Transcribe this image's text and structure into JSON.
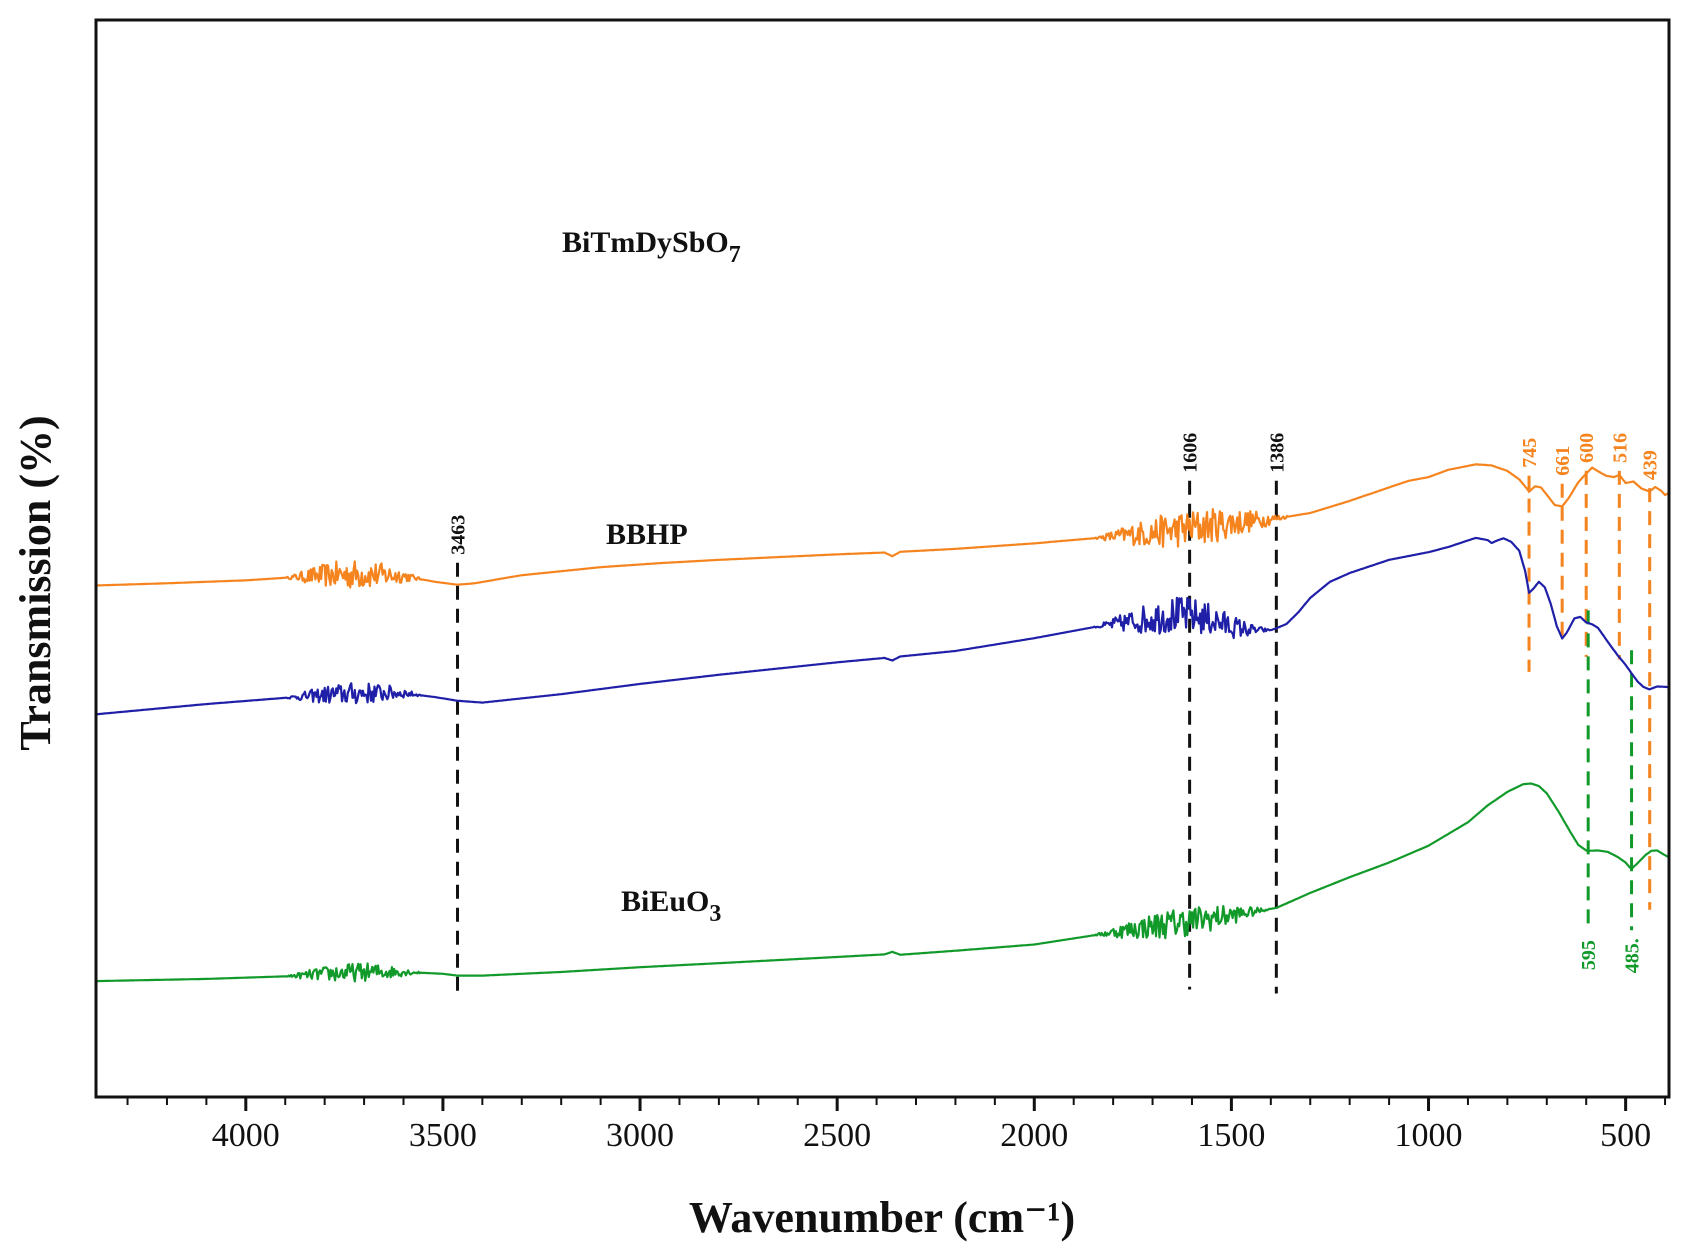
{
  "chart_data": {
    "type": "line",
    "title": "",
    "xlabel": "Wavenumber (cm⁻¹)",
    "ylabel": "Transmission (%)",
    "xlim": [
      4380,
      390
    ],
    "x_reversed": true,
    "ylim": [
      0,
      100
    ],
    "xticks": [
      4000,
      3500,
      3000,
      2500,
      2000,
      1500,
      1000,
      500
    ],
    "xtick_labels": [
      "4000",
      "3500",
      "3000",
      "2500",
      "2000",
      "1500",
      "1000",
      "500"
    ],
    "y_tick_labels_shown": false,
    "grid": false,
    "series": [
      {
        "name": "BiTmDySbO",
        "subscript": "7",
        "color": "#f5841f",
        "noise": [
          [
            3900,
            3550,
            4
          ],
          [
            1850,
            1350,
            5
          ]
        ],
        "points": [
          [
            4380,
            30.2
          ],
          [
            4200,
            30.8
          ],
          [
            4000,
            31.6
          ],
          [
            3900,
            32.3
          ],
          [
            3800,
            33.0
          ],
          [
            3700,
            33.3
          ],
          [
            3600,
            32.8
          ],
          [
            3520,
            31.2
          ],
          [
            3463,
            30.4
          ],
          [
            3420,
            30.8
          ],
          [
            3300,
            33.0
          ],
          [
            3100,
            35.2
          ],
          [
            2950,
            36.3
          ],
          [
            2800,
            37.2
          ],
          [
            2500,
            38.7
          ],
          [
            2380,
            39.2
          ],
          [
            2360,
            38.2
          ],
          [
            2340,
            39.4
          ],
          [
            2200,
            40.2
          ],
          [
            2000,
            41.7
          ],
          [
            1850,
            43.1
          ],
          [
            1700,
            44.7
          ],
          [
            1606,
            45.8
          ],
          [
            1500,
            47.3
          ],
          [
            1386,
            48.5
          ],
          [
            1300,
            50.0
          ],
          [
            1200,
            53.3
          ],
          [
            1100,
            57.0
          ],
          [
            1050,
            58.8
          ],
          [
            1000,
            59.8
          ],
          [
            950,
            61.8
          ],
          [
            880,
            63.3
          ],
          [
            840,
            63.0
          ],
          [
            800,
            61.5
          ],
          [
            770,
            59.2
          ],
          [
            750,
            56.6
          ],
          [
            745,
            55.8
          ],
          [
            730,
            57.3
          ],
          [
            715,
            57.0
          ],
          [
            700,
            55.0
          ],
          [
            680,
            52.2
          ],
          [
            661,
            51.8
          ],
          [
            645,
            54.0
          ],
          [
            620,
            58.4
          ],
          [
            600,
            60.8
          ],
          [
            585,
            62.4
          ],
          [
            570,
            61.4
          ],
          [
            550,
            60.2
          ],
          [
            530,
            59.8
          ],
          [
            516,
            60.4
          ],
          [
            500,
            58.2
          ],
          [
            480,
            58.6
          ],
          [
            460,
            56.7
          ],
          [
            445,
            56.1
          ],
          [
            439,
            55.9
          ],
          [
            425,
            57.1
          ],
          [
            410,
            56.1
          ],
          [
            400,
            54.9
          ],
          [
            390,
            55.5
          ]
        ]
      },
      {
        "name": "BBHP",
        "subscript": "",
        "color": "#1f1fa8",
        "noise": [
          [
            3900,
            3550,
            3
          ],
          [
            1850,
            1400,
            5
          ]
        ],
        "points": [
          [
            4380,
            -5.0
          ],
          [
            4100,
            -2.2
          ],
          [
            3900,
            -0.5
          ],
          [
            3800,
            0.3
          ],
          [
            3700,
            0.8
          ],
          [
            3600,
            0.8
          ],
          [
            3520,
            -0.3
          ],
          [
            3463,
            -1.3
          ],
          [
            3400,
            -1.8
          ],
          [
            3200,
            0.5
          ],
          [
            3000,
            3.3
          ],
          [
            2800,
            5.8
          ],
          [
            2500,
            9.2
          ],
          [
            2380,
            10.4
          ],
          [
            2360,
            9.7
          ],
          [
            2340,
            10.8
          ],
          [
            2200,
            12.3
          ],
          [
            2000,
            15.8
          ],
          [
            1850,
            18.8
          ],
          [
            1750,
            20.4
          ],
          [
            1650,
            22.2
          ],
          [
            1606,
            22.0
          ],
          [
            1550,
            20.8
          ],
          [
            1500,
            19.0
          ],
          [
            1450,
            18.0
          ],
          [
            1400,
            18.0
          ],
          [
            1386,
            18.5
          ],
          [
            1360,
            19.7
          ],
          [
            1330,
            22.9
          ],
          [
            1300,
            26.8
          ],
          [
            1250,
            31.2
          ],
          [
            1200,
            33.6
          ],
          [
            1100,
            37.2
          ],
          [
            1000,
            39.3
          ],
          [
            950,
            40.7
          ],
          [
            900,
            42.5
          ],
          [
            880,
            43.2
          ],
          [
            850,
            42.6
          ],
          [
            840,
            41.8
          ],
          [
            830,
            42.3
          ],
          [
            810,
            43.1
          ],
          [
            790,
            42.1
          ],
          [
            770,
            39.7
          ],
          [
            755,
            34.2
          ],
          [
            745,
            28.2
          ],
          [
            735,
            29.2
          ],
          [
            720,
            31.2
          ],
          [
            705,
            29.7
          ],
          [
            690,
            25.2
          ],
          [
            675,
            19.2
          ],
          [
            661,
            15.7
          ],
          [
            650,
            17.2
          ],
          [
            630,
            21.2
          ],
          [
            615,
            21.6
          ],
          [
            600,
            20.1
          ],
          [
            585,
            19.6
          ],
          [
            570,
            18.6
          ],
          [
            555,
            16.3
          ],
          [
            540,
            14.0
          ],
          [
            520,
            11.1
          ],
          [
            500,
            8.5
          ],
          [
            485,
            6.2
          ],
          [
            470,
            4.0
          ],
          [
            455,
            2.5
          ],
          [
            440,
            1.8
          ],
          [
            420,
            2.6
          ],
          [
            400,
            2.5
          ],
          [
            390,
            2.4
          ]
        ]
      },
      {
        "name": "BiEuO",
        "subscript": "3",
        "color": "#119a2a",
        "noise": [
          [
            3900,
            3550,
            2.5
          ],
          [
            1850,
            1400,
            4
          ]
        ],
        "points": [
          [
            4380,
            -77.9
          ],
          [
            4100,
            -77.3
          ],
          [
            3900,
            -76.6
          ],
          [
            3800,
            -75.9
          ],
          [
            3700,
            -75.4
          ],
          [
            3600,
            -75.4
          ],
          [
            3500,
            -75.9
          ],
          [
            3463,
            -76.4
          ],
          [
            3400,
            -76.4
          ],
          [
            3200,
            -75.4
          ],
          [
            3000,
            -74.1
          ],
          [
            2800,
            -73.0
          ],
          [
            2500,
            -71.3
          ],
          [
            2380,
            -70.6
          ],
          [
            2360,
            -69.9
          ],
          [
            2340,
            -70.7
          ],
          [
            2200,
            -69.6
          ],
          [
            2000,
            -67.9
          ],
          [
            1850,
            -65.4
          ],
          [
            1700,
            -62.9
          ],
          [
            1606,
            -61.5
          ],
          [
            1500,
            -59.9
          ],
          [
            1386,
            -57.9
          ],
          [
            1300,
            -53.8
          ],
          [
            1200,
            -49.5
          ],
          [
            1100,
            -45.5
          ],
          [
            1000,
            -40.9
          ],
          [
            950,
            -37.7
          ],
          [
            900,
            -34.5
          ],
          [
            850,
            -29.9
          ],
          [
            800,
            -26.2
          ],
          [
            760,
            -24.1
          ],
          [
            740,
            -23.9
          ],
          [
            720,
            -24.6
          ],
          [
            700,
            -26.6
          ],
          [
            670,
            -31.6
          ],
          [
            640,
            -37.2
          ],
          [
            620,
            -40.7
          ],
          [
            600,
            -42.2
          ],
          [
            595,
            -42.3
          ],
          [
            570,
            -42.2
          ],
          [
            545,
            -42.6
          ],
          [
            520,
            -44.0
          ],
          [
            500,
            -45.5
          ],
          [
            490,
            -46.8
          ],
          [
            485,
            -47.2
          ],
          [
            470,
            -45.7
          ],
          [
            450,
            -43.5
          ],
          [
            435,
            -42.3
          ],
          [
            420,
            -42.2
          ],
          [
            405,
            -43.2
          ],
          [
            390,
            -44.1
          ]
        ]
      }
    ],
    "reference_lines": [
      {
        "label": "3463",
        "x": 3463,
        "color": "#111111",
        "from_y": -83.0,
        "to_y": 36.4
      },
      {
        "label": "1606",
        "x": 1606,
        "color": "#111111",
        "from_y": -80.2,
        "to_y": 58.8
      },
      {
        "label": "1386",
        "x": 1386,
        "color": "#111111",
        "from_y": -81.3,
        "to_y": 58.8
      },
      {
        "label": "745",
        "x": 745,
        "color": "#f5841f",
        "from_y": 6.6,
        "to_y": 60.2
      },
      {
        "label": "661",
        "x": 661,
        "color": "#f5841f",
        "from_y": 14.8,
        "to_y": 58.0
      },
      {
        "label": "600",
        "x": 600,
        "color": "#f5841f",
        "from_y": 10.7,
        "to_y": 61.5
      },
      {
        "label": "516",
        "x": 516,
        "color": "#f5841f",
        "from_y": 10.0,
        "to_y": 61.5
      },
      {
        "label": "439",
        "x": 439,
        "color": "#f5841f",
        "from_y": -58.4,
        "to_y": 56.8
      },
      {
        "label": "595",
        "x": 595,
        "color": "#119a2a",
        "from_y": -64.5,
        "to_y": 23.4
      },
      {
        "label": "485.",
        "x": 485,
        "color": "#119a2a",
        "from_y": -64.0,
        "to_y": 12.5
      }
    ]
  }
}
